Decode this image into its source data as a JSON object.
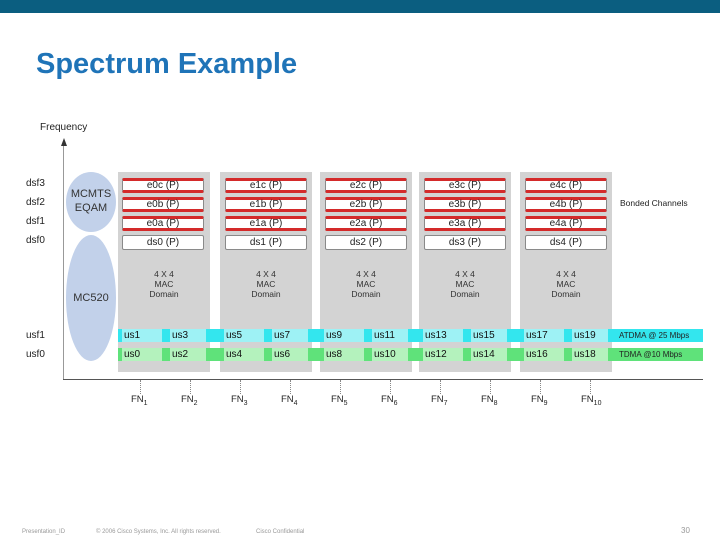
{
  "slide": {
    "title": "Spectrum Example",
    "axis_label": "Frequency"
  },
  "left_labels": {
    "dsf3": "dsf3",
    "dsf2": "dsf2",
    "dsf1": "dsf1",
    "dsf0": "dsf0",
    "usf1": "usf1",
    "usf0": "usf0"
  },
  "devices": {
    "cmts_line1": "MCMTS",
    "cmts_line2": "EQAM",
    "mc": "MC520"
  },
  "domains": [
    {
      "rows": [
        "e0c (P)",
        "e0b (P)",
        "e0a (P)",
        "ds0 (P)"
      ],
      "line1": "4 X 4",
      "line2": "MAC",
      "line3": "Domain"
    },
    {
      "rows": [
        "e1c (P)",
        "e1b (P)",
        "e1a (P)",
        "ds1 (P)"
      ],
      "line1": "4 X 4",
      "line2": "MAC",
      "line3": "Domain"
    },
    {
      "rows": [
        "e2c (P)",
        "e2b (P)",
        "e2a (P)",
        "ds2 (P)"
      ],
      "line1": "4 X 4",
      "line2": "MAC",
      "line3": "Domain"
    },
    {
      "rows": [
        "e3c (P)",
        "e3b (P)",
        "e3a (P)",
        "ds3 (P)"
      ],
      "line1": "4 X 4",
      "line2": "MAC",
      "line3": "Domain"
    },
    {
      "rows": [
        "e4c (P)",
        "e4b (P)",
        "e4a (P)",
        "ds4 (P)"
      ],
      "line1": "4 X 4",
      "line2": "MAC",
      "line3": "Domain"
    }
  ],
  "bonded_channels_label": "Bonded Channels",
  "upstream": {
    "usf1_cells": [
      "us1",
      "us3",
      "us5",
      "us7",
      "us9",
      "us11",
      "us13",
      "us15",
      "us17",
      "us19"
    ],
    "usf0_cells": [
      "us0",
      "us2",
      "us4",
      "us6",
      "us8",
      "us10",
      "us12",
      "us14",
      "us16",
      "us18"
    ],
    "usf1_note": "ATDMA @ 25 Mbps",
    "usf0_note": "TDMA @10 Mbps"
  },
  "fiber_nodes": [
    {
      "base": "FN",
      "sub": "1"
    },
    {
      "base": "FN",
      "sub": "2"
    },
    {
      "base": "FN",
      "sub": "3"
    },
    {
      "base": "FN",
      "sub": "4"
    },
    {
      "base": "FN",
      "sub": "5"
    },
    {
      "base": "FN",
      "sub": "6"
    },
    {
      "base": "FN",
      "sub": "7"
    },
    {
      "base": "FN",
      "sub": "8"
    },
    {
      "base": "FN",
      "sub": "9"
    },
    {
      "base": "FN",
      "sub": "10"
    }
  ],
  "footer": {
    "presentation_id": "Presentation_ID",
    "copyright": "© 2006 Cisco Systems, Inc. All rights reserved.",
    "confidential": "Cisco Confidential",
    "page_number": "30"
  },
  "colors": {
    "top_bar": "#0b5e80",
    "title": "#1f74b8",
    "panel": "#d3d3d3",
    "bond_red": "#d42a2a",
    "usf1_band": "#33e6ee",
    "usf0_band": "#5fe27a",
    "ellipse": "#c2d1ea"
  }
}
